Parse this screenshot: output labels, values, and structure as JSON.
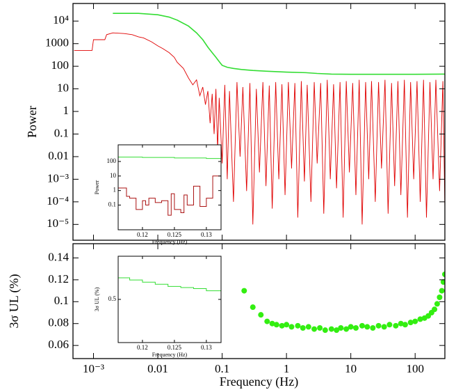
{
  "chart_data": [
    {
      "type": "line",
      "ylabel": "Power",
      "xlog": true,
      "ylog": true,
      "xlim": [
        0.00048,
        290
      ],
      "ylim": [
        2e-06,
        60000
      ],
      "yticks": [
        {
          "value": 10000,
          "label": "10⁴"
        },
        1000,
        100,
        10,
        1,
        0.1,
        0.01,
        {
          "value": 0.001,
          "label": "10⁻³"
        },
        {
          "value": 0.0001,
          "label": "10⁻⁴"
        },
        {
          "value": 1e-05,
          "label": "10⁻⁵"
        }
      ],
      "series": [
        {
          "color": "#e00000",
          "x": [
            0.0005,
            0.00095,
            0.001,
            0.0015,
            0.0016,
            0.002,
            0.003,
            0.004,
            0.005,
            0.006,
            0.008,
            0.01,
            0.012,
            0.015,
            0.018,
            0.02,
            0.025,
            0.03,
            0.035,
            0.04,
            0.045,
            0.05,
            0.055,
            0.06,
            0.065,
            0.07,
            0.075,
            0.08,
            0.085,
            0.09,
            0.1,
            0.11,
            0.12,
            0.13,
            0.15,
            0.17,
            0.19,
            0.21,
            0.24,
            0.27,
            0.3,
            0.34,
            0.38,
            0.43,
            0.48,
            0.54,
            0.6,
            0.68,
            0.76,
            0.85,
            0.95,
            1.07,
            1.2,
            1.35,
            1.5,
            1.7,
            1.9,
            2.1,
            2.4,
            2.7,
            3,
            3.4,
            3.8,
            4.3,
            4.8,
            5.4,
            6,
            6.8,
            7.6,
            8.5,
            9.5,
            10.7,
            12,
            13.5,
            15,
            17,
            19,
            21,
            24,
            27,
            30,
            34,
            38,
            43,
            48,
            54,
            60,
            68,
            76,
            85,
            95,
            107,
            120,
            135,
            150,
            170,
            190,
            210,
            240,
            270,
            290
          ],
          "values": [
            500,
            500,
            1500,
            1500,
            2500,
            3000,
            2800,
            2500,
            2000,
            1800,
            1200,
            800,
            600,
            400,
            250,
            150,
            80,
            30,
            15,
            25,
            5,
            12,
            2,
            8,
            0.3,
            6,
            0.1,
            10,
            0.02,
            4,
            0.005,
            15,
            0.001,
            8,
            0.0001,
            20,
            0.01,
            12,
            0.0003,
            18,
            1e-05,
            10,
            0.002,
            20,
            0.0005,
            14,
            5e-05,
            20,
            0.001,
            16,
            0.0002,
            20,
            0.003,
            18,
            2e-05,
            22,
            0.0008,
            15,
            0.0001,
            20,
            0.005,
            18,
            3e-05,
            25,
            0.001,
            16,
            0.0004,
            20,
            2e-05,
            22,
            0.002,
            18,
            0.0002,
            25,
            1e-05,
            20,
            0.001,
            22,
            0.0001,
            20,
            0.003,
            25,
            3e-05,
            18,
            0.0005,
            22,
            0.0002,
            25,
            2e-05,
            20,
            0.001,
            22,
            0.0001,
            25,
            2e-05,
            20,
            0.001,
            25,
            0.0003,
            22,
            5e-05
          ]
        },
        {
          "color": "#33dd33",
          "x": [
            0.002,
            0.005,
            0.01,
            0.015,
            0.02,
            0.03,
            0.04,
            0.05,
            0.06,
            0.07,
            0.08,
            0.09,
            0.1,
            0.12,
            0.15,
            0.2,
            0.3,
            0.5,
            1,
            2,
            3,
            5,
            10,
            30,
            100,
            290
          ],
          "values": [
            22000,
            22000,
            19000,
            15000,
            11000,
            6000,
            3000,
            1500,
            700,
            400,
            250,
            160,
            110,
            90,
            80,
            72,
            65,
            60,
            55,
            52,
            48,
            45,
            44,
            44,
            44,
            45
          ]
        }
      ]
    },
    {
      "type": "scatter",
      "ylabel": "3σ UL (%)",
      "xlabel": "Frequency (Hz)",
      "xlog": true,
      "xlim": [
        0.00048,
        290
      ],
      "ylim": [
        0.048,
        0.153
      ],
      "xticks": [
        {
          "value": 0.001,
          "label": "10⁻³"
        },
        0.01,
        0.1,
        1,
        10,
        100
      ],
      "yticks": [
        0.14,
        0.12,
        0.1,
        0.08,
        0.06
      ],
      "series": [
        {
          "color": "#33ee11",
          "x": [
            0.22,
            0.3,
            0.4,
            0.5,
            0.6,
            0.7,
            0.85,
            1,
            1.2,
            1.5,
            1.8,
            2.2,
            2.7,
            3.3,
            4,
            5,
            6,
            7,
            8.5,
            10,
            12,
            15,
            18,
            22,
            27,
            33,
            40,
            50,
            60,
            70,
            85,
            100,
            120,
            140,
            160,
            180,
            200,
            220,
            240,
            260,
            275,
            290
          ],
          "values": [
            0.11,
            0.095,
            0.088,
            0.082,
            0.08,
            0.079,
            0.078,
            0.079,
            0.077,
            0.078,
            0.076,
            0.077,
            0.075,
            0.076,
            0.074,
            0.075,
            0.074,
            0.076,
            0.075,
            0.077,
            0.076,
            0.078,
            0.077,
            0.076,
            0.078,
            0.077,
            0.079,
            0.078,
            0.08,
            0.079,
            0.081,
            0.082,
            0.084,
            0.085,
            0.087,
            0.09,
            0.093,
            0.098,
            0.104,
            0.11,
            0.118,
            0.125
          ]
        }
      ]
    },
    {
      "type": "line",
      "ylabel": "Power",
      "xlabel": "Frequency (Hz)",
      "ylog": true,
      "xlim": [
        0.1162,
        0.1323
      ],
      "ylim": [
        0.002,
        1400
      ],
      "xticks": [
        0.12,
        0.125,
        0.13
      ],
      "yticks": [
        100,
        10,
        1,
        0.1
      ],
      "series": [
        {
          "color": "#33dd33",
          "drawstyle": "steps",
          "x": [
            0.1162,
            0.12,
            0.125,
            0.13,
            0.1323
          ],
          "values": [
            200,
            190,
            175,
            160,
            155
          ]
        },
        {
          "color": "#aa1111",
          "drawstyle": "steps",
          "x": [
            0.1162,
            0.117,
            0.1175,
            0.118,
            0.119,
            0.12,
            0.1205,
            0.121,
            0.122,
            0.123,
            0.124,
            0.1245,
            0.125,
            0.126,
            0.1265,
            0.127,
            0.128,
            0.129,
            0.13,
            0.131,
            0.1323
          ],
          "values": [
            1.5,
            1.5,
            0.4,
            0.3,
            0.05,
            0.2,
            0.1,
            0.3,
            0.15,
            0.2,
            0.02,
            0.6,
            0.05,
            0.03,
            0.5,
            0.1,
            2,
            0.08,
            0.3,
            10,
            10
          ]
        }
      ]
    },
    {
      "type": "line",
      "ylabel": "3σ UL (%)",
      "xlabel": "Frequency (Hz)",
      "xlim": [
        0.1162,
        0.1323
      ],
      "ylim": [
        0.3,
        0.7
      ],
      "xticks": [
        0.12,
        0.125,
        0.13
      ],
      "yticks": [
        0.5
      ],
      "series": [
        {
          "color": "#33dd33",
          "drawstyle": "steps",
          "x": [
            0.1162,
            0.118,
            0.12,
            0.122,
            0.124,
            0.126,
            0.128,
            0.13,
            0.1323
          ],
          "values": [
            0.6,
            0.59,
            0.58,
            0.57,
            0.56,
            0.555,
            0.55,
            0.54,
            0.53
          ]
        }
      ]
    }
  ]
}
